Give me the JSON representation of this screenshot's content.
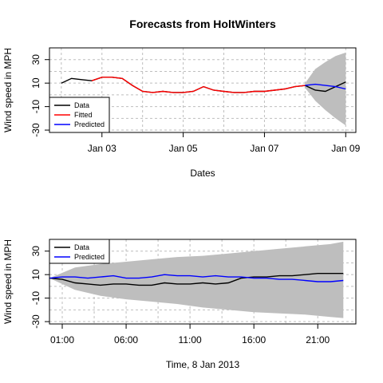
{
  "chart_data": [
    {
      "type": "line",
      "title": "Forecasts from HoltWinters",
      "xlabel": "Dates",
      "ylabel": "Wind speed in MPH",
      "x_ticks": [
        "Jan 03",
        "Jan 05",
        "Jan 07",
        "Jan 09"
      ],
      "y_ticks": [
        "-30",
        "-10",
        "10",
        "30"
      ],
      "xlim": [
        "2013-01-01T17:00",
        "2013-01-09T06:00"
      ],
      "ylim": [
        -32,
        40
      ],
      "grid": true,
      "legend": {
        "position": "bottom-left",
        "entries": [
          "Data",
          "Fitted",
          "Predicted"
        ]
      },
      "colors": {
        "Data": "#000000",
        "Fitted": "#ff0000",
        "Predicted": "#0000ff",
        "band": "#bebebe"
      },
      "series": [
        {
          "name": "Data",
          "x": [
            "2013-01-02T00:00",
            "2013-01-02T06:00",
            "2013-01-02T12:00",
            "2013-01-02T18:00",
            "2013-01-03T00:00",
            "2013-01-03T06:00",
            "2013-01-03T12:00",
            "2013-01-03T18:00",
            "2013-01-04T00:00",
            "2013-01-04T06:00",
            "2013-01-04T12:00",
            "2013-01-04T18:00",
            "2013-01-05T00:00",
            "2013-01-05T06:00",
            "2013-01-05T12:00",
            "2013-01-05T18:00",
            "2013-01-06T00:00",
            "2013-01-06T06:00",
            "2013-01-06T12:00",
            "2013-01-06T18:00",
            "2013-01-07T00:00",
            "2013-01-07T06:00",
            "2013-01-07T12:00",
            "2013-01-07T18:00",
            "2013-01-08T00:00",
            "2013-01-08T06:00",
            "2013-01-08T12:00",
            "2013-01-08T18:00",
            "2013-01-09T00:00"
          ],
          "y": [
            10,
            14,
            13,
            12,
            15,
            15,
            14,
            8,
            3,
            2,
            3,
            2,
            2,
            3,
            7,
            4,
            3,
            2,
            2,
            3,
            3,
            4,
            5,
            7,
            8,
            4,
            3,
            7,
            11
          ]
        },
        {
          "name": "Fitted",
          "x": [
            "2013-01-02T18:00",
            "2013-01-03T00:00",
            "2013-01-03T06:00",
            "2013-01-03T12:00",
            "2013-01-03T18:00",
            "2013-01-04T00:00",
            "2013-01-04T06:00",
            "2013-01-04T12:00",
            "2013-01-04T18:00",
            "2013-01-05T00:00",
            "2013-01-05T06:00",
            "2013-01-05T12:00",
            "2013-01-05T18:00",
            "2013-01-06T00:00",
            "2013-01-06T06:00",
            "2013-01-06T12:00",
            "2013-01-06T18:00",
            "2013-01-07T00:00",
            "2013-01-07T06:00",
            "2013-01-07T12:00",
            "2013-01-07T18:00",
            "2013-01-08T00:00"
          ],
          "y": [
            12,
            15,
            15,
            14,
            8,
            3,
            2,
            3,
            2,
            2,
            3,
            7,
            4,
            3,
            2,
            2,
            3,
            3,
            4,
            5,
            7,
            8
          ]
        },
        {
          "name": "Predicted",
          "x": [
            "2013-01-08T00:00",
            "2013-01-08T06:00",
            "2013-01-08T12:00",
            "2013-01-08T18:00",
            "2013-01-09T00:00"
          ],
          "y": [
            8,
            9,
            8,
            7,
            5
          ]
        }
      ],
      "band": {
        "x": [
          "2013-01-08T00:00",
          "2013-01-08T06:00",
          "2013-01-08T12:00",
          "2013-01-08T18:00",
          "2013-01-09T00:00"
        ],
        "upper": [
          10,
          22,
          28,
          33,
          36
        ],
        "lower": [
          6,
          -5,
          -13,
          -20,
          -26
        ]
      }
    },
    {
      "type": "line",
      "title": "",
      "xlabel": "Time, 8 Jan 2013",
      "ylabel": "Wind speed in MPH",
      "x_ticks": [
        "01:00",
        "06:00",
        "11:00",
        "16:00",
        "21:00"
      ],
      "y_ticks": [
        "-30",
        "-10",
        "10",
        "30"
      ],
      "xlim": [
        "2013-01-08T00:00",
        "2013-01-08T23:59"
      ],
      "ylim": [
        -32,
        40
      ],
      "grid": true,
      "legend": {
        "position": "top-left",
        "entries": [
          "Data",
          "Predicted"
        ]
      },
      "colors": {
        "Data": "#000000",
        "Predicted": "#0000ff",
        "band": "#bebebe"
      },
      "series": [
        {
          "name": "Data",
          "x": [
            "2013-01-08T00:00",
            "2013-01-08T01:00",
            "2013-01-08T02:00",
            "2013-01-08T03:00",
            "2013-01-08T04:00",
            "2013-01-08T05:00",
            "2013-01-08T06:00",
            "2013-01-08T07:00",
            "2013-01-08T08:00",
            "2013-01-08T09:00",
            "2013-01-08T10:00",
            "2013-01-08T11:00",
            "2013-01-08T12:00",
            "2013-01-08T13:00",
            "2013-01-08T14:00",
            "2013-01-08T15:00",
            "2013-01-08T16:00",
            "2013-01-08T17:00",
            "2013-01-08T18:00",
            "2013-01-08T19:00",
            "2013-01-08T20:00",
            "2013-01-08T21:00",
            "2013-01-08T22:00",
            "2013-01-08T23:00"
          ],
          "y": [
            7,
            6,
            3,
            2,
            1,
            2,
            2,
            1,
            1,
            3,
            2,
            2,
            3,
            2,
            3,
            7,
            8,
            8,
            9,
            9,
            10,
            11,
            11,
            11
          ]
        },
        {
          "name": "Predicted",
          "x": [
            "2013-01-08T00:00",
            "2013-01-08T01:00",
            "2013-01-08T02:00",
            "2013-01-08T03:00",
            "2013-01-08T04:00",
            "2013-01-08T05:00",
            "2013-01-08T06:00",
            "2013-01-08T07:00",
            "2013-01-08T08:00",
            "2013-01-08T09:00",
            "2013-01-08T10:00",
            "2013-01-08T11:00",
            "2013-01-08T12:00",
            "2013-01-08T13:00",
            "2013-01-08T14:00",
            "2013-01-08T15:00",
            "2013-01-08T16:00",
            "2013-01-08T17:00",
            "2013-01-08T18:00",
            "2013-01-08T19:00",
            "2013-01-08T20:00",
            "2013-01-08T21:00",
            "2013-01-08T22:00",
            "2013-01-08T23:00"
          ],
          "y": [
            7,
            8,
            8,
            7,
            8,
            9,
            7,
            7,
            8,
            10,
            9,
            9,
            8,
            9,
            8,
            8,
            7,
            7,
            6,
            6,
            5,
            4,
            4,
            5
          ]
        }
      ],
      "band": {
        "x": [
          "2013-01-08T00:00",
          "2013-01-08T02:00",
          "2013-01-08T04:00",
          "2013-01-08T06:00",
          "2013-01-08T08:00",
          "2013-01-08T10:00",
          "2013-01-08T12:00",
          "2013-01-08T14:00",
          "2013-01-08T16:00",
          "2013-01-08T18:00",
          "2013-01-08T20:00",
          "2013-01-08T22:00",
          "2013-01-08T23:00"
        ],
        "upper": [
          7,
          16,
          19,
          21,
          23,
          25,
          26,
          28,
          30,
          32,
          34,
          36,
          38
        ],
        "lower": [
          7,
          -3,
          -8,
          -11,
          -13,
          -15,
          -18,
          -20,
          -22,
          -23,
          -24,
          -26,
          -27
        ]
      }
    }
  ]
}
